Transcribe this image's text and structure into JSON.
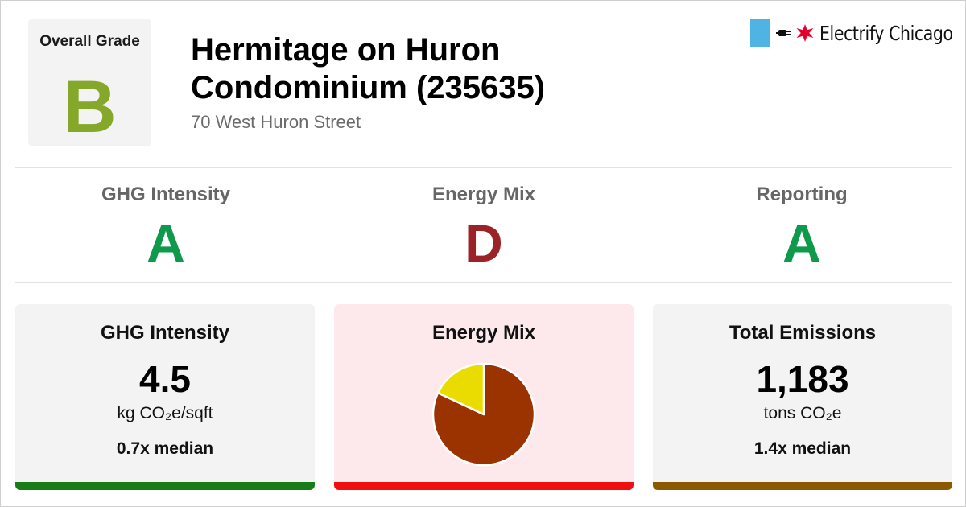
{
  "header": {
    "overall_grade_label": "Overall Grade",
    "overall_grade": "B",
    "overall_grade_color": "#86a82a",
    "title_line1": "Hermitage on Huron",
    "title_line2": "Condominium (235635)",
    "address": "70 West Huron Street"
  },
  "logo": {
    "text": "Electrify Chicago",
    "flag_color": "#4fb3e3",
    "star_color": "#e4002b",
    "icons": [
      "plug-icon",
      "star-icon"
    ]
  },
  "grades": [
    {
      "label": "GHG Intensity",
      "grade": "A",
      "color": "#0e9a4a"
    },
    {
      "label": "Energy Mix",
      "grade": "D",
      "color": "#9b2226"
    },
    {
      "label": "Reporting",
      "grade": "A",
      "color": "#0e9a4a"
    }
  ],
  "cards": {
    "ghg": {
      "title": "GHG Intensity",
      "value": "4.5",
      "unit": "kg CO₂e/sqft",
      "median": "0.7x median",
      "background": "#f3f3f3",
      "bar_color": "#177e17"
    },
    "energy_mix": {
      "title": "Energy Mix",
      "background": "#fde9ec",
      "bar_color": "#f00f0f",
      "pie": {
        "slices": [
          {
            "name": "",
            "fraction": 0.82,
            "color": "#9a3300"
          },
          {
            "name": "",
            "fraction": 0.18,
            "color": "#eadc00"
          }
        ]
      }
    },
    "emissions": {
      "title": "Total Emissions",
      "value": "1,183",
      "unit": "tons CO₂e",
      "median": "1.4x median",
      "background": "#f3f3f3",
      "bar_color": "#8b5a00"
    }
  }
}
